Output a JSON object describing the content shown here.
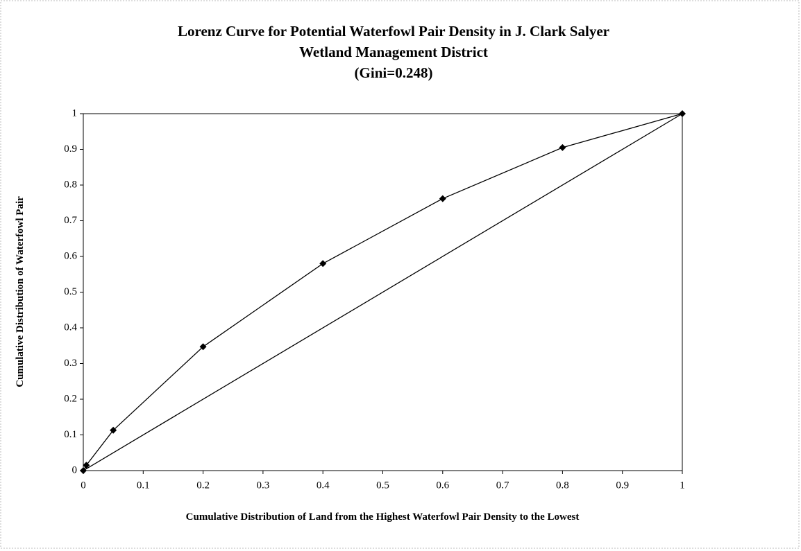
{
  "chart_data": {
    "type": "line",
    "title": [
      "Lorenz Curve for Potential Waterfowl Pair Density in J. Clark Salyer",
      "Wetland Management District",
      "(Gini=0.248)"
    ],
    "xlabel": "Cumulative Distribution of Land from the Highest Waterfowl Pair Density to the Lowest",
    "ylabel": "Cumulative Distribution of Waterfowl Pair",
    "series": [
      {
        "color": "#000000",
        "markers": true,
        "x": [
          0,
          0.005,
          0.05,
          0.2,
          0.4,
          0.6,
          0.8,
          1
        ],
        "values": [
          0,
          0.015,
          0.113,
          0.347,
          0.58,
          0.762,
          0.905,
          1
        ]
      },
      {
        "color": "#000000",
        "markers": false,
        "x": [
          0,
          1
        ],
        "values": [
          0,
          1
        ]
      }
    ],
    "xlim": [
      0,
      1
    ],
    "ylim": [
      0,
      1
    ],
    "xticks": [
      0,
      0.1,
      0.2,
      0.3,
      0.4,
      0.5,
      0.6,
      0.7,
      0.8,
      0.9,
      1
    ],
    "yticks": [
      0,
      0.1,
      0.2,
      0.3,
      0.4,
      0.5,
      0.6,
      0.7,
      0.8,
      0.9,
      1
    ],
    "grid": false
  }
}
